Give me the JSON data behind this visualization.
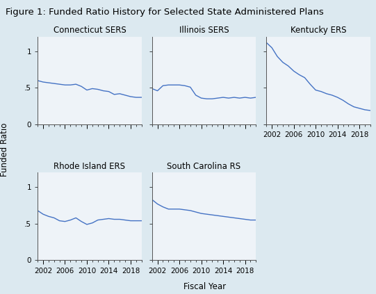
{
  "title": "Figure 1: Funded Ratio History for Selected State Administered Plans",
  "xlabel": "Fiscal Year",
  "ylabel": "Funded Ratio",
  "background_color": "#dce9f0",
  "plot_background": "#eef3f8",
  "line_color": "#4472c4",
  "line_width": 1.0,
  "panels": [
    {
      "title": "Connecticut SERS",
      "years": [
        2001,
        2002,
        2003,
        2004,
        2005,
        2006,
        2007,
        2008,
        2009,
        2010,
        2011,
        2012,
        2013,
        2014,
        2015,
        2016,
        2017,
        2018,
        2019,
        2020
      ],
      "values": [
        0.6,
        0.58,
        0.57,
        0.56,
        0.55,
        0.54,
        0.54,
        0.55,
        0.52,
        0.47,
        0.49,
        0.48,
        0.46,
        0.45,
        0.41,
        0.42,
        0.4,
        0.38,
        0.37,
        0.37
      ],
      "ylim": [
        0,
        1.2
      ],
      "yticks": [
        0,
        0.5,
        1
      ],
      "show_xticklabels": false,
      "show_yticklabels": true,
      "row": 0,
      "col": 0
    },
    {
      "title": "Illinois SERS",
      "years": [
        2001,
        2002,
        2003,
        2004,
        2005,
        2006,
        2007,
        2008,
        2009,
        2010,
        2011,
        2012,
        2013,
        2014,
        2015,
        2016,
        2017,
        2018,
        2019,
        2020
      ],
      "values": [
        0.49,
        0.46,
        0.53,
        0.54,
        0.54,
        0.54,
        0.53,
        0.51,
        0.4,
        0.36,
        0.35,
        0.35,
        0.36,
        0.37,
        0.36,
        0.37,
        0.36,
        0.37,
        0.36,
        0.37
      ],
      "ylim": [
        0,
        1.2
      ],
      "yticks": [
        0,
        0.5,
        1
      ],
      "show_xticklabels": false,
      "show_yticklabels": false,
      "row": 0,
      "col": 1
    },
    {
      "title": "Kentucky ERS",
      "years": [
        2001,
        2002,
        2003,
        2004,
        2005,
        2006,
        2007,
        2008,
        2009,
        2010,
        2011,
        2012,
        2013,
        2014,
        2015,
        2016,
        2017,
        2018,
        2019,
        2020
      ],
      "values": [
        1.12,
        1.05,
        0.93,
        0.85,
        0.8,
        0.73,
        0.68,
        0.64,
        0.55,
        0.47,
        0.45,
        0.42,
        0.4,
        0.37,
        0.33,
        0.28,
        0.24,
        0.22,
        0.2,
        0.19
      ],
      "ylim": [
        0,
        1.2
      ],
      "yticks": [
        0,
        0.5,
        1
      ],
      "show_xticklabels": true,
      "show_yticklabels": false,
      "row": 0,
      "col": 2
    },
    {
      "title": "Rhode Island ERS",
      "years": [
        2001,
        2002,
        2003,
        2004,
        2005,
        2006,
        2007,
        2008,
        2009,
        2010,
        2011,
        2012,
        2013,
        2014,
        2015,
        2016,
        2017,
        2018,
        2019,
        2020
      ],
      "values": [
        0.68,
        0.63,
        0.6,
        0.58,
        0.54,
        0.53,
        0.55,
        0.58,
        0.53,
        0.49,
        0.51,
        0.55,
        0.56,
        0.57,
        0.56,
        0.56,
        0.55,
        0.54,
        0.54,
        0.54
      ],
      "ylim": [
        0,
        1.2
      ],
      "yticks": [
        0,
        0.5,
        1
      ],
      "show_xticklabels": true,
      "show_yticklabels": true,
      "row": 1,
      "col": 0
    },
    {
      "title": "South Carolina RS",
      "years": [
        2001,
        2002,
        2003,
        2004,
        2005,
        2006,
        2007,
        2008,
        2009,
        2010,
        2011,
        2012,
        2013,
        2014,
        2015,
        2016,
        2017,
        2018,
        2019,
        2020
      ],
      "values": [
        0.83,
        0.77,
        0.73,
        0.7,
        0.7,
        0.7,
        0.69,
        0.68,
        0.66,
        0.64,
        0.63,
        0.62,
        0.61,
        0.6,
        0.59,
        0.58,
        0.57,
        0.56,
        0.55,
        0.55
      ],
      "ylim": [
        0,
        1.2
      ],
      "yticks": [
        0,
        0.5,
        1
      ],
      "show_xticklabels": true,
      "show_yticklabels": false,
      "row": 1,
      "col": 1
    }
  ],
  "xtick_years": [
    2002,
    2006,
    2010,
    2014,
    2018
  ],
  "title_fontsize": 9.5,
  "axis_label_fontsize": 8.5,
  "tick_fontsize": 7.5,
  "panel_title_fontsize": 8.5
}
